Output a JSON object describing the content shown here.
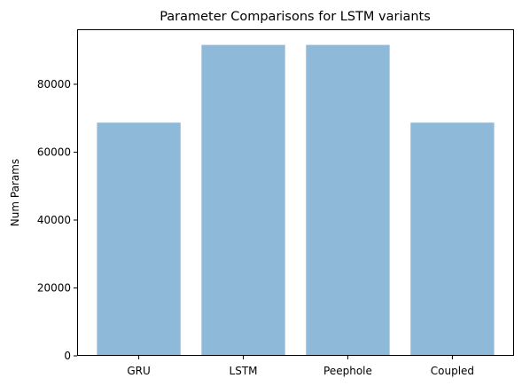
{
  "chart_data": {
    "type": "bar",
    "title": "Parameter Comparisons for LSTM variants",
    "xlabel": "",
    "ylabel": "Num Params",
    "categories": [
      "GRU",
      "LSTM",
      "Peephole",
      "Coupled"
    ],
    "values": [
      68700,
      91600,
      91600,
      68700
    ],
    "ylim": [
      0,
      96200
    ],
    "yticks": [
      0,
      20000,
      40000,
      60000,
      80000
    ],
    "bar_color": "#8fb9d9",
    "grid": false
  }
}
